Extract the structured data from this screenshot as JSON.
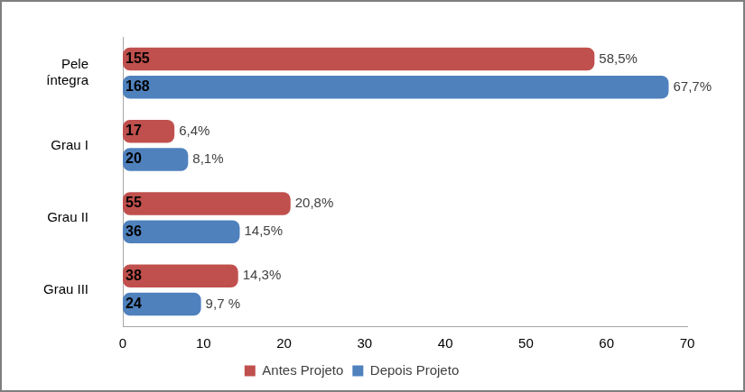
{
  "chart_data": {
    "type": "bar",
    "orientation": "horizontal",
    "categories": [
      "Pele íntegra",
      "Grau I",
      "Grau II",
      "Grau III"
    ],
    "series": [
      {
        "name": "Antes Projeto",
        "color": "#c0504d",
        "values": [
          58.5,
          6.4,
          20.8,
          14.3
        ],
        "value_labels": [
          "58,5%",
          "6,4%",
          "20,8%",
          "14,3%"
        ],
        "counts": [
          155,
          17,
          55,
          38
        ]
      },
      {
        "name": "Depois Projeto",
        "color": "#4f81bd",
        "values": [
          67.7,
          8.1,
          14.5,
          9.7
        ],
        "value_labels": [
          "67,7%",
          "8,1%",
          "14,5%",
          "9,7 %"
        ],
        "counts": [
          168,
          20,
          36,
          24
        ]
      }
    ],
    "xlim": [
      0,
      70
    ],
    "xticks": [
      0,
      10,
      20,
      30,
      40,
      50,
      60,
      70
    ],
    "grid": false,
    "legend": "bottom",
    "data_labels": true
  }
}
